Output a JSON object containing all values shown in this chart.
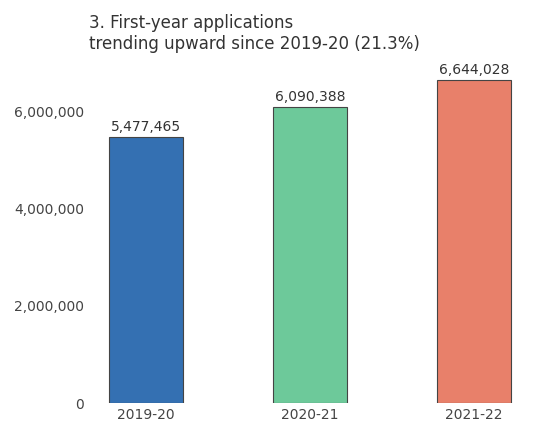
{
  "categories": [
    "2019-20",
    "2020-21",
    "2021-22"
  ],
  "values": [
    5477465,
    6090388,
    6644028
  ],
  "bar_colors": [
    "#3470B2",
    "#6DC99A",
    "#E8806A"
  ],
  "bar_edge_color": "#444444",
  "bar_labels": [
    "5,477,465",
    "6,090,388",
    "6,644,028"
  ],
  "title_line1": "3. First-year applications",
  "title_line2": "trending upward since 2019-20 (21.3%)",
  "ylim": [
    0,
    7000000
  ],
  "yticks": [
    0,
    2000000,
    4000000,
    6000000
  ],
  "ytick_labels": [
    "0",
    "2,000,000",
    "4,000,000",
    "6,000,000"
  ],
  "background_color": "#ffffff",
  "bar_width": 0.45,
  "label_fontsize": 10,
  "title_fontsize": 12,
  "tick_fontsize": 10,
  "figsize": [
    5.45,
    4.36
  ],
  "dpi": 100
}
